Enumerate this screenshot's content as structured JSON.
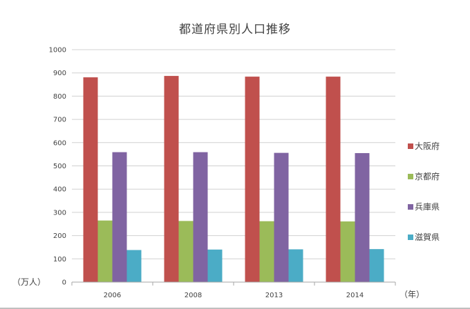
{
  "chart_data": {
    "type": "bar",
    "title": "都道府県別人口推移",
    "y_unit_label": "（万人）",
    "x_unit_label": "（年）",
    "categories": [
      "2006",
      "2008",
      "2013",
      "2014"
    ],
    "series": [
      {
        "name": "大阪府",
        "color": "#c0504d",
        "values": [
          881,
          887,
          884,
          884
        ]
      },
      {
        "name": "京都府",
        "color": "#9bbb59",
        "values": [
          265,
          263,
          262,
          261
        ]
      },
      {
        "name": "兵庫県",
        "color": "#8064a2",
        "values": [
          559,
          559,
          556,
          555
        ]
      },
      {
        "name": "滋賀県",
        "color": "#4bacc6",
        "values": [
          138,
          140,
          141,
          142
        ]
      }
    ],
    "ylim": [
      0,
      1000
    ],
    "yticks": [
      0,
      100,
      200,
      300,
      400,
      500,
      600,
      700,
      800,
      900,
      1000
    ],
    "grid": true,
    "legend_position": "right"
  }
}
